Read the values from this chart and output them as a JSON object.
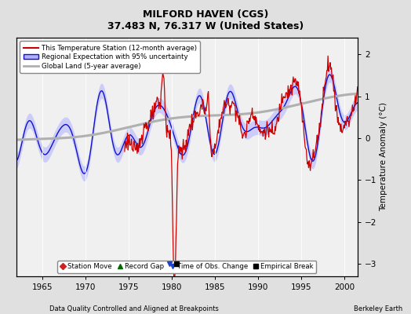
{
  "title": "MILFORD HAVEN (CGS)",
  "subtitle": "37.483 N, 76.317 W (United States)",
  "xlabel_bottom": "Data Quality Controlled and Aligned at Breakpoints",
  "xlabel_right": "Berkeley Earth",
  "ylabel": "Temperature Anomaly (°C)",
  "xlim": [
    1962.0,
    2001.5
  ],
  "ylim": [
    -3.3,
    2.4
  ],
  "yticks": [
    -3,
    -2,
    -1,
    0,
    1,
    2
  ],
  "xticks": [
    1965,
    1970,
    1975,
    1980,
    1985,
    1990,
    1995,
    2000
  ],
  "bg_color": "#e0e0e0",
  "plot_bg_color": "#f0f0f0",
  "regional_fill_color": "#b0b0ff",
  "regional_line_color": "#1111cc",
  "station_line_color": "#cc0000",
  "global_line_color": "#b0b0b0",
  "empirical_break_year": 1980.5,
  "time_obs_change_year": 1979.75,
  "legend_labels": [
    "This Temperature Station (12-month average)",
    "Regional Expectation with 95% uncertainty",
    "Global Land (5-year average)"
  ],
  "bottom_legend": [
    "Station Move",
    "Record Gap",
    "Time of Obs. Change",
    "Empirical Break"
  ],
  "station_start_year": 1974.5,
  "station_end_year": 2001.5
}
